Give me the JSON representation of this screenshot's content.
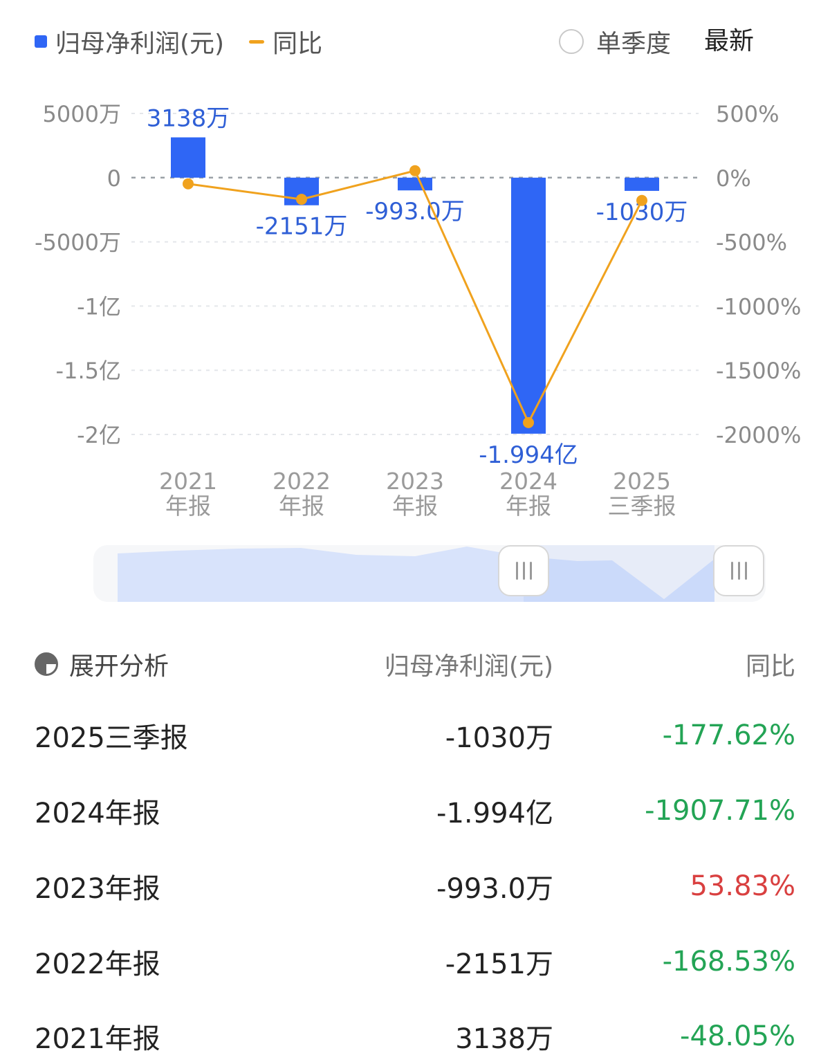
{
  "legend": {
    "profit_label": "归母净利润(元)",
    "yoy_label": "同比"
  },
  "toggle": {
    "single_quarter_label": "单季度",
    "latest_label": "最新"
  },
  "colors": {
    "bar": "#2f66f5",
    "line": "#f0a21e",
    "negative": "#23a455",
    "positive": "#d94040"
  },
  "chart_data": {
    "type": "bar",
    "categories": [
      "2021\n年报",
      "2022\n年报",
      "2023\n年报",
      "2024\n年报",
      "2025\n三季报"
    ],
    "series": [
      {
        "name": "归母净利润(元)",
        "type": "bar",
        "values": [
          31380000,
          -21510000,
          -9930000,
          -199400000,
          -10300000
        ],
        "labels": [
          "3138万",
          "-2151万",
          "-993.0万",
          "-1.994亿",
          "-1030万"
        ]
      },
      {
        "name": "同比",
        "type": "line",
        "axis": "right",
        "values": [
          -48.05,
          -168.53,
          53.83,
          -1907.71,
          -177.62
        ]
      }
    ],
    "y_left": {
      "ticks": [
        50000000,
        0,
        -50000000,
        -100000000,
        -150000000,
        -200000000
      ],
      "tick_labels": [
        "5000万",
        "0",
        "-5000万",
        "-1亿",
        "-1.5亿",
        "-2亿"
      ],
      "range": [
        -200000000,
        50000000
      ]
    },
    "y_right": {
      "ticks": [
        500,
        0,
        -500,
        -1000,
        -1500,
        -2000
      ],
      "tick_labels": [
        "500%",
        "0%",
        "-500%",
        "-1000%",
        "-1500%",
        "-2000%"
      ],
      "range": [
        -2000,
        500
      ]
    },
    "grid": true,
    "legend_position": "top-left"
  },
  "table": {
    "header": {
      "analyze_label": "展开分析",
      "value_label": "归母净利润(元)",
      "yoy_label": "同比"
    },
    "rows": [
      {
        "period": "2025三季报",
        "value": "-1030万",
        "yoy": "-177.62%",
        "trend": "neg"
      },
      {
        "period": "2024年报",
        "value": "-1.994亿",
        "yoy": "-1907.71%",
        "trend": "neg"
      },
      {
        "period": "2023年报",
        "value": "-993.0万",
        "yoy": "53.83%",
        "trend": "pos"
      },
      {
        "period": "2022年报",
        "value": "-2151万",
        "yoy": "-168.53%",
        "trend": "neg"
      },
      {
        "period": "2021年报",
        "value": "3138万",
        "yoy": "-48.05%",
        "trend": "neg"
      }
    ]
  }
}
